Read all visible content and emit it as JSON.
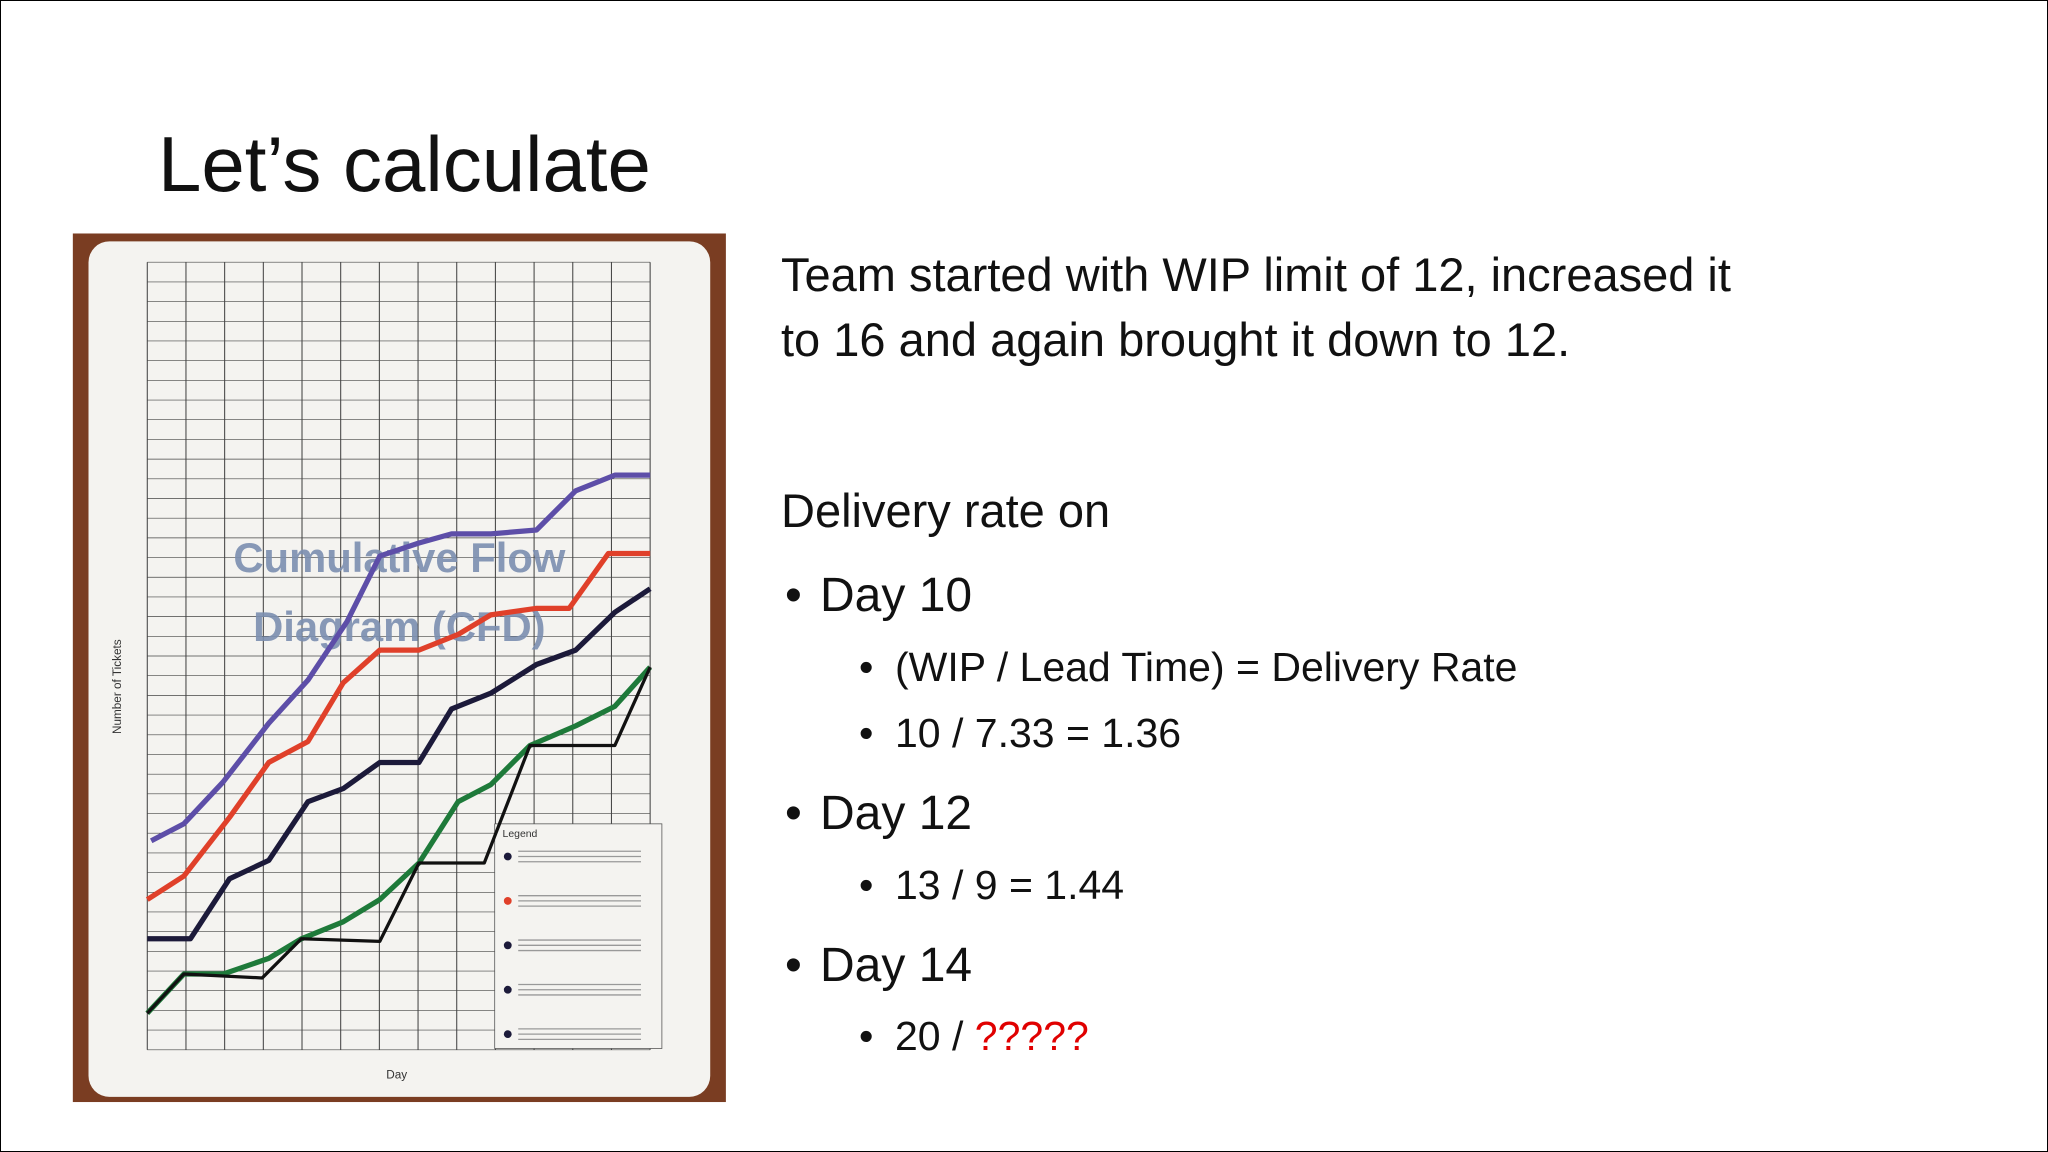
{
  "slide": {
    "title": "Let’s calculate",
    "photo": {
      "title_lines": [
        "Cumulative Flow",
        "Diagram (CFD)"
      ],
      "x_label": "Day",
      "y_label": "Number of Tickets",
      "legend_title": "Legend"
    },
    "intro_lines": [
      "Team started with WIP limit of 12, increased it",
      "to 16 and again brought it down to 12."
    ],
    "heading": "Delivery rate on",
    "items": [
      {
        "label": "Day 10",
        "sub": [
          {
            "text": "(WIP / Lead Time) = Delivery Rate"
          },
          {
            "text": "10 / 7.33 = 1.36"
          }
        ]
      },
      {
        "label": "Day 12",
        "sub": [
          {
            "text": "13 / 9 = 1.44"
          }
        ]
      },
      {
        "label": "Day 14",
        "sub": [
          {
            "text": "20 / ",
            "highlight": "?????"
          }
        ]
      }
    ]
  }
}
